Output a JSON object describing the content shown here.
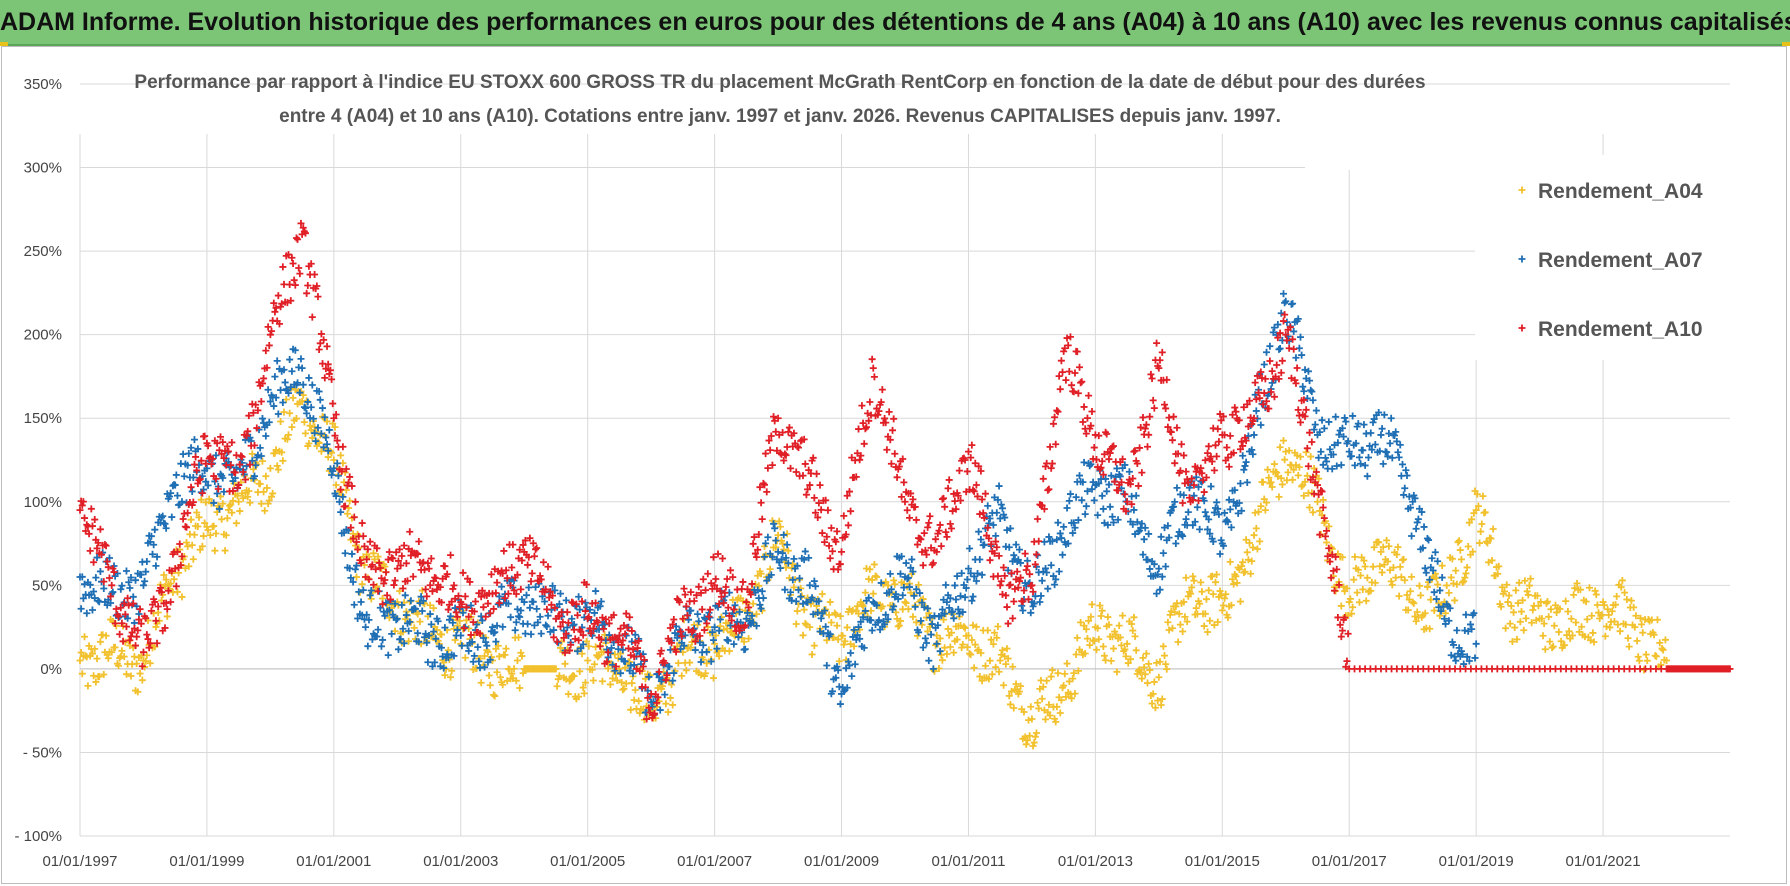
{
  "header": {
    "title": "ADAM Informe. Evolution historique des performances en euros pour des détentions de 4 ans (A04) à 10 ans (A10) avec les revenus connus capitalisés"
  },
  "chart_data": {
    "type": "scatter",
    "title_line1": "Performance par rapport à l'indice EU STOXX 600 GROSS TR  du placement McGrath RentCorp en fonction de la date de début pour des durées",
    "title_line2": "entre 4 (A04) et 10 ans (A10).  Cotations entre janv. 1997 et janv. 2026. Revenus CAPITALISES depuis janv. 1997.",
    "xlabel": "",
    "ylabel": "",
    "x_range": [
      1997.0,
      2023.0
    ],
    "ylim": [
      -100,
      350
    ],
    "y_ticks": [
      -100,
      -50,
      0,
      50,
      100,
      150,
      200,
      250,
      300,
      350
    ],
    "y_tick_labels": [
      "- 100%",
      "- 50%",
      "0%",
      "50%",
      "100%",
      "150%",
      "200%",
      "250%",
      "300%",
      "350%"
    ],
    "x_ticks": [
      1997,
      1999,
      2001,
      2003,
      2005,
      2007,
      2009,
      2011,
      2013,
      2015,
      2017,
      2019,
      2021
    ],
    "x_tick_labels": [
      "01/01/1997",
      "01/01/1999",
      "01/01/2001",
      "01/01/2003",
      "01/01/2005",
      "01/01/2007",
      "01/01/2009",
      "01/01/2011",
      "01/01/2013",
      "01/01/2015",
      "01/01/2017",
      "01/01/2019",
      "01/01/2021"
    ],
    "grid": true,
    "legend_position": "top-right",
    "series": [
      {
        "name": "Rendement_A04",
        "color": "#f2c12e",
        "x": [
          1997.0,
          1997.5,
          1998.0,
          1998.5,
          1999.0,
          1999.5,
          2000.0,
          2000.5,
          2001.0,
          2001.5,
          2002.0,
          2002.5,
          2003.0,
          2003.5,
          2004.0,
          2004.5,
          2005.0,
          2005.5,
          2006.0,
          2006.5,
          2007.0,
          2007.5,
          2008.0,
          2008.5,
          2009.0,
          2009.5,
          2010.0,
          2010.5,
          2011.0,
          2011.5,
          2012.0,
          2012.5,
          2013.0,
          2013.5,
          2014.0,
          2014.5,
          2015.0,
          2015.5,
          2016.0,
          2016.5,
          2017.0,
          2017.5,
          2018.0,
          2018.5,
          2019.0,
          2019.5,
          2020.0,
          2020.5,
          2021.0,
          2021.5,
          2022.0
        ],
        "y": [
          5,
          10,
          5,
          60,
          85,
          100,
          120,
          160,
          125,
          55,
          40,
          20,
          15,
          5,
          0,
          0,
          5,
          0,
          -25,
          10,
          15,
          30,
          80,
          25,
          20,
          45,
          40,
          20,
          20,
          5,
          -30,
          -10,
          25,
          15,
          -5,
          45,
          35,
          80,
          130,
          100,
          40,
          70,
          40,
          40,
          95,
          40,
          30,
          30,
          40,
          25,
          5
        ]
      },
      {
        "name": "Rendement_A07",
        "color": "#1f6fb5",
        "x": [
          1997.0,
          1997.5,
          1998.0,
          1998.5,
          1999.0,
          1999.5,
          2000.0,
          2000.5,
          2001.0,
          2001.5,
          2002.0,
          2002.5,
          2003.0,
          2003.5,
          2004.0,
          2004.5,
          2005.0,
          2005.5,
          2006.0,
          2006.5,
          2007.0,
          2007.5,
          2008.0,
          2008.5,
          2009.0,
          2009.5,
          2010.0,
          2010.5,
          2011.0,
          2011.5,
          2012.0,
          2012.5,
          2013.0,
          2013.5,
          2014.0,
          2014.5,
          2015.0,
          2015.5,
          2016.0,
          2016.5,
          2017.0,
          2017.5,
          2018.0,
          2018.5,
          2019.0
        ],
        "y": [
          55,
          45,
          50,
          110,
          120,
          110,
          160,
          180,
          120,
          25,
          30,
          20,
          20,
          25,
          40,
          30,
          30,
          20,
          -20,
          20,
          25,
          30,
          70,
          50,
          -15,
          40,
          55,
          15,
          60,
          90,
          40,
          85,
          110,
          100,
          60,
          110,
          75,
          140,
          220,
          140,
          130,
          140,
          100,
          30,
          15
        ]
      },
      {
        "name": "Rendement_A10",
        "color": "#e01f26",
        "x": [
          1997.0,
          1997.5,
          1998.0,
          1998.5,
          1999.0,
          1999.5,
          2000.0,
          2000.5,
          2001.0,
          2001.5,
          2002.0,
          2002.5,
          2003.0,
          2003.5,
          2004.0,
          2004.5,
          2005.0,
          2005.5,
          2006.0,
          2006.5,
          2007.0,
          2007.5,
          2008.0,
          2008.5,
          2009.0,
          2009.5,
          2010.0,
          2010.5,
          2011.0,
          2011.5,
          2012.0,
          2012.5,
          2013.0,
          2013.5,
          2014.0,
          2014.5,
          2015.0,
          2015.5,
          2016.0,
          2016.5,
          2017.0,
          2022.0,
          2023.0
        ],
        "y": [
          95,
          50,
          10,
          60,
          135,
          110,
          200,
          260,
          150,
          55,
          60,
          60,
          40,
          45,
          70,
          30,
          30,
          20,
          -15,
          30,
          50,
          40,
          150,
          110,
          70,
          180,
          100,
          70,
          130,
          50,
          50,
          190,
          140,
          100,
          180,
          100,
          140,
          150,
          200,
          110,
          0,
          0,
          0
        ]
      }
    ]
  }
}
